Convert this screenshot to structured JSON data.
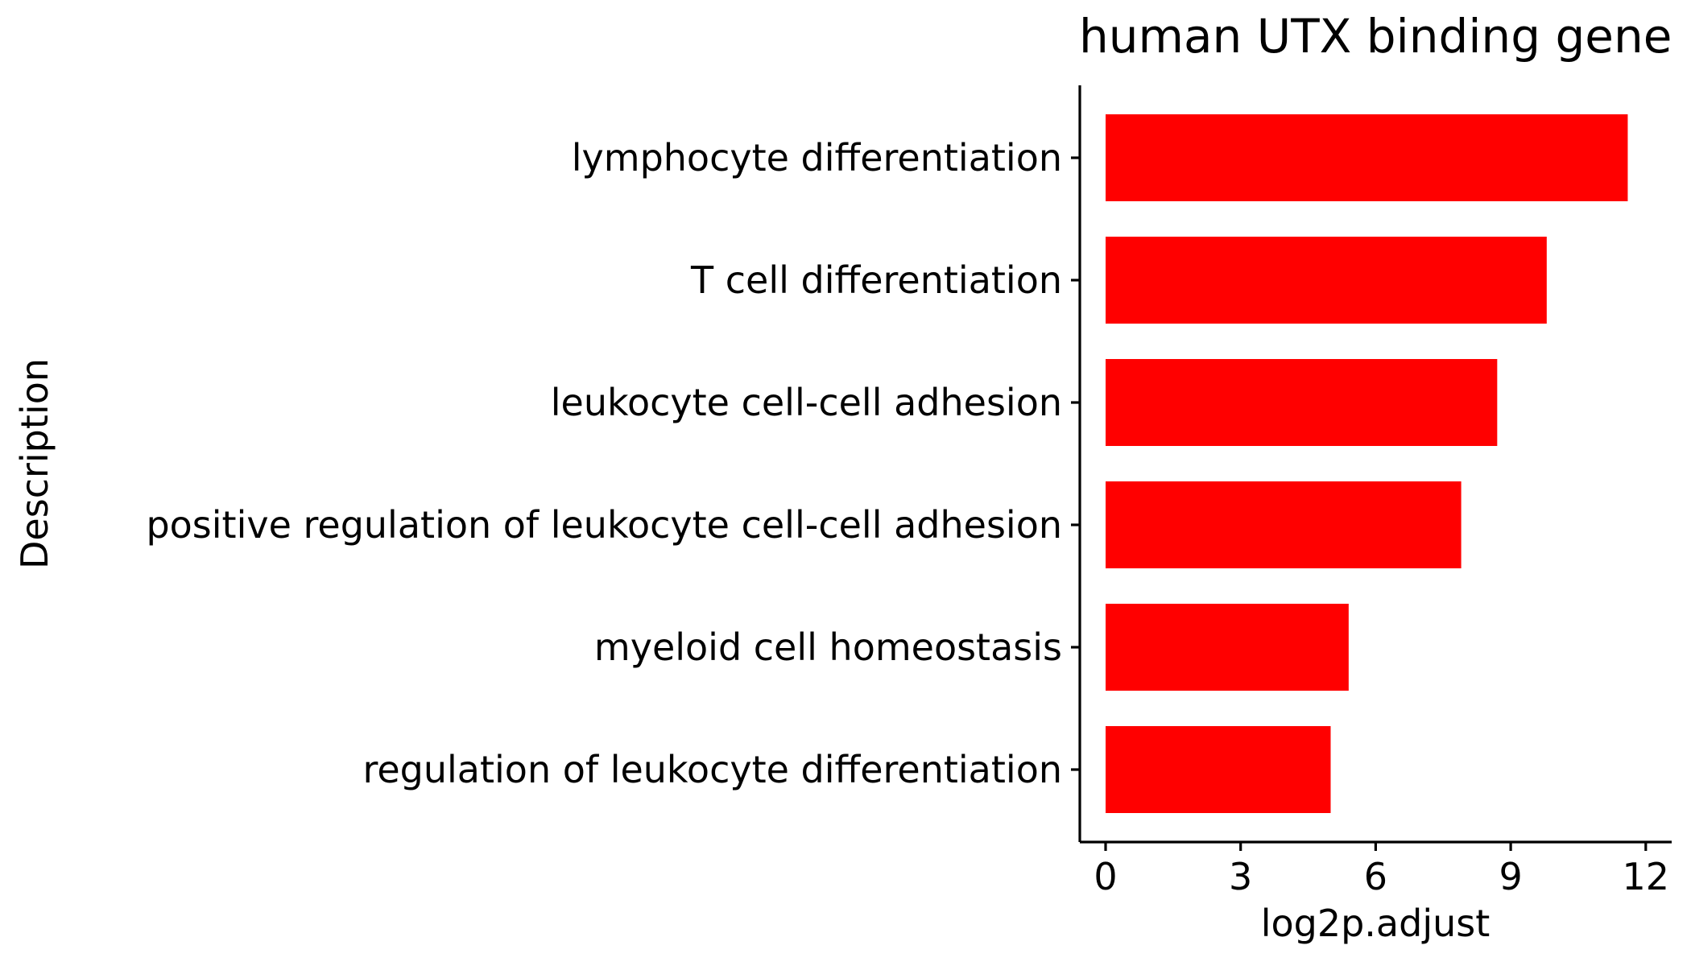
{
  "chart_data": {
    "type": "bar",
    "orientation": "horizontal",
    "title": "human UTX binding gene",
    "xlabel": "log2p.adjust",
    "ylabel": "Description",
    "categories": [
      "lymphocyte differentiation",
      "T cell differentiation",
      "leukocyte cell-cell adhesion",
      "positive regulation of leukocyte cell-cell adhesion",
      "myeloid cell homeostasis",
      "regulation of leukocyte differentiation"
    ],
    "values": [
      11.6,
      9.8,
      8.7,
      7.9,
      5.4,
      5.0
    ],
    "xlim": [
      0,
      12
    ],
    "xticks": [
      "0",
      "3",
      "6",
      "9",
      "12"
    ],
    "xtick_values": [
      0,
      3,
      6,
      9,
      12
    ],
    "bar_color": "#ff0000",
    "grid": false,
    "legend": "none"
  }
}
